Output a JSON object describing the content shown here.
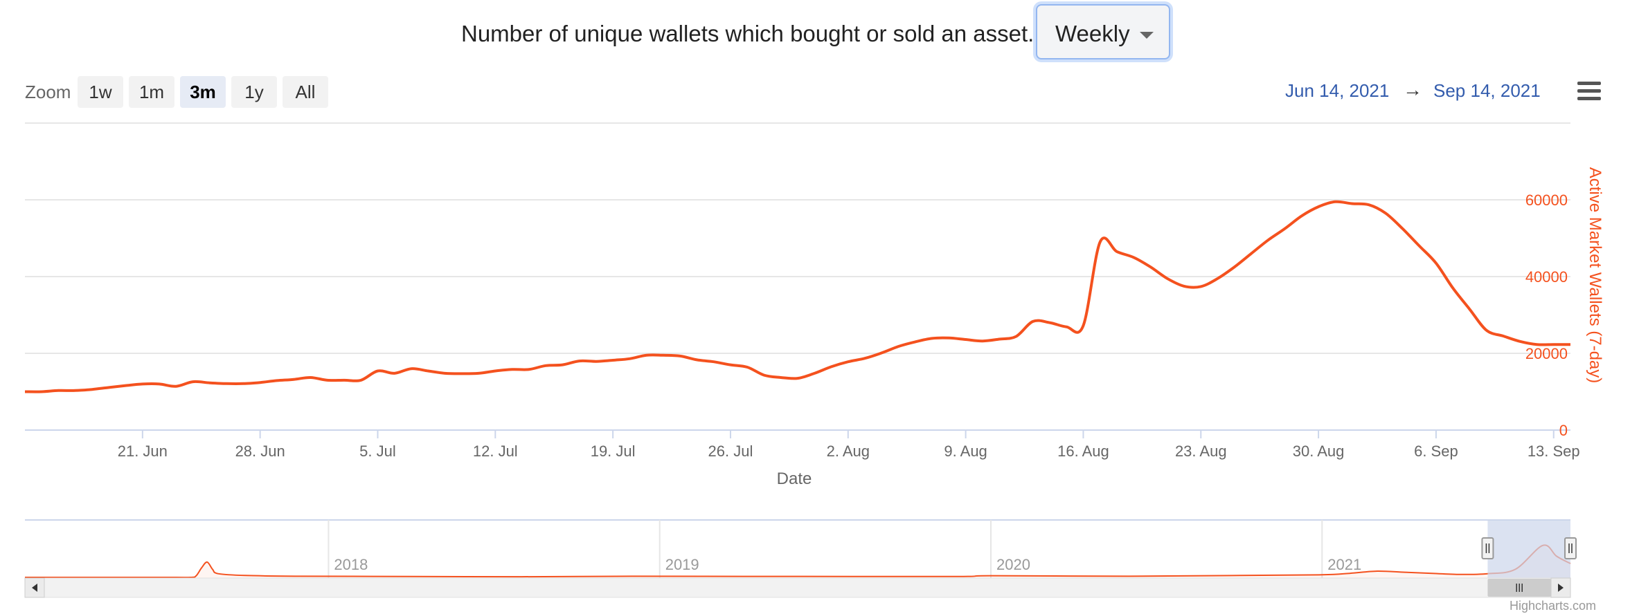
{
  "header": {
    "description": "Number of unique wallets which bought or sold an asset.",
    "period_selected": "Weekly"
  },
  "zoom": {
    "label": "Zoom",
    "buttons": [
      "1w",
      "1m",
      "3m",
      "1y",
      "All"
    ],
    "active": "3m"
  },
  "range": {
    "from": "Jun 14, 2021",
    "arrow": "→",
    "to": "Sep 14, 2021"
  },
  "credit": "Highcharts.com",
  "colors": {
    "series": "#f4511e",
    "axis_title": "#f4511e",
    "grid": "#e6e6e6",
    "navigator_mask": "#ccd6eb"
  },
  "chart_data": {
    "type": "line",
    "title": "Number of unique wallets which bought or sold an asset.",
    "xlabel": "Date",
    "ylabel": "Active Market Wallets (7-day)",
    "y_axis_side": "right",
    "ylim": [
      0,
      80000
    ],
    "y_ticks": [
      0,
      20000,
      40000,
      60000
    ],
    "x_range_days": [
      0,
      92
    ],
    "x_ticks": [
      {
        "day": 7,
        "label": "21. Jun"
      },
      {
        "day": 14,
        "label": "28. Jun"
      },
      {
        "day": 21,
        "label": "5. Jul"
      },
      {
        "day": 28,
        "label": "12. Jul"
      },
      {
        "day": 35,
        "label": "19. Jul"
      },
      {
        "day": 42,
        "label": "26. Jul"
      },
      {
        "day": 49,
        "label": "2. Aug"
      },
      {
        "day": 56,
        "label": "9. Aug"
      },
      {
        "day": 63,
        "label": "16. Aug"
      },
      {
        "day": 70,
        "label": "23. Aug"
      },
      {
        "day": 77,
        "label": "30. Aug"
      },
      {
        "day": 84,
        "label": "6. Sep"
      },
      {
        "day": 91,
        "label": "13. Sep"
      }
    ],
    "series": [
      {
        "name": "Active Market Wallets (7-day)",
        "points": [
          [
            0,
            10000
          ],
          [
            1,
            10000
          ],
          [
            2,
            10300
          ],
          [
            3,
            10300
          ],
          [
            4,
            10600
          ],
          [
            5,
            11100
          ],
          [
            6,
            11600
          ],
          [
            7,
            12000
          ],
          [
            8,
            12000
          ],
          [
            9,
            11400
          ],
          [
            10,
            12600
          ],
          [
            11,
            12300
          ],
          [
            12,
            12100
          ],
          [
            13,
            12100
          ],
          [
            14,
            12400
          ],
          [
            15,
            12900
          ],
          [
            16,
            13200
          ],
          [
            17,
            13700
          ],
          [
            18,
            13000
          ],
          [
            19,
            13000
          ],
          [
            20,
            13000
          ],
          [
            21,
            15400
          ],
          [
            22,
            14800
          ],
          [
            23,
            16000
          ],
          [
            24,
            15400
          ],
          [
            25,
            14800
          ],
          [
            26,
            14700
          ],
          [
            27,
            14800
          ],
          [
            28,
            15400
          ],
          [
            29,
            15800
          ],
          [
            30,
            15800
          ],
          [
            31,
            16800
          ],
          [
            32,
            17000
          ],
          [
            33,
            18000
          ],
          [
            34,
            17900
          ],
          [
            35,
            18200
          ],
          [
            36,
            18600
          ],
          [
            37,
            19500
          ],
          [
            38,
            19500
          ],
          [
            39,
            19300
          ],
          [
            40,
            18300
          ],
          [
            41,
            17800
          ],
          [
            42,
            17000
          ],
          [
            43,
            16400
          ],
          [
            44,
            14300
          ],
          [
            45,
            13700
          ],
          [
            46,
            13500
          ],
          [
            47,
            14800
          ],
          [
            48,
            16500
          ],
          [
            49,
            17800
          ],
          [
            50,
            18700
          ],
          [
            51,
            20100
          ],
          [
            52,
            21800
          ],
          [
            53,
            23000
          ],
          [
            54,
            23900
          ],
          [
            55,
            24000
          ],
          [
            56,
            23600
          ],
          [
            57,
            23200
          ],
          [
            58,
            23700
          ],
          [
            59,
            24400
          ],
          [
            60,
            28300
          ],
          [
            61,
            28000
          ],
          [
            62,
            26900
          ],
          [
            63,
            27200
          ],
          [
            64,
            49000
          ],
          [
            65,
            46500
          ],
          [
            66,
            45000
          ],
          [
            67,
            42500
          ],
          [
            68,
            39500
          ],
          [
            69,
            37500
          ],
          [
            70,
            37400
          ],
          [
            71,
            39500
          ],
          [
            72,
            42500
          ],
          [
            73,
            46000
          ],
          [
            74,
            49500
          ],
          [
            75,
            52500
          ],
          [
            76,
            55800
          ],
          [
            77,
            58200
          ],
          [
            78,
            59500
          ],
          [
            79,
            59000
          ],
          [
            80,
            58700
          ],
          [
            81,
            56500
          ],
          [
            82,
            52500
          ],
          [
            83,
            48000
          ],
          [
            84,
            43500
          ],
          [
            85,
            37000
          ],
          [
            86,
            31500
          ],
          [
            87,
            26000
          ],
          [
            88,
            24500
          ],
          [
            89,
            23100
          ],
          [
            90,
            22300
          ],
          [
            91,
            22300
          ],
          [
            92,
            22300
          ]
        ]
      }
    ],
    "navigator": {
      "year_labels": [
        "2018",
        "2019",
        "2020",
        "2021"
      ],
      "x_range_months": [
        0,
        56
      ],
      "year_positions_months": [
        11,
        23,
        35,
        47
      ],
      "selected_range_months": [
        53,
        56
      ],
      "ylim": [
        0,
        80000
      ],
      "points": [
        [
          0,
          1000
        ],
        [
          5,
          1000
        ],
        [
          6,
          1000
        ],
        [
          6.2,
          3000
        ],
        [
          6.4,
          14000
        ],
        [
          6.6,
          22000
        ],
        [
          6.8,
          12000
        ],
        [
          7,
          6000
        ],
        [
          8,
          3500
        ],
        [
          10,
          2500
        ],
        [
          14,
          2200
        ],
        [
          18,
          1800
        ],
        [
          22,
          2500
        ],
        [
          26,
          2300
        ],
        [
          30,
          2200
        ],
        [
          34,
          2200
        ],
        [
          35,
          3200
        ],
        [
          40,
          2500
        ],
        [
          44,
          3500
        ],
        [
          47,
          4500
        ],
        [
          48,
          6500
        ],
        [
          49,
          9500
        ],
        [
          50,
          8000
        ],
        [
          51,
          6500
        ],
        [
          52,
          5000
        ],
        [
          53,
          6000
        ],
        [
          54,
          12000
        ],
        [
          55,
          45000
        ],
        [
          55.5,
          30000
        ],
        [
          56,
          20000
        ]
      ]
    }
  }
}
